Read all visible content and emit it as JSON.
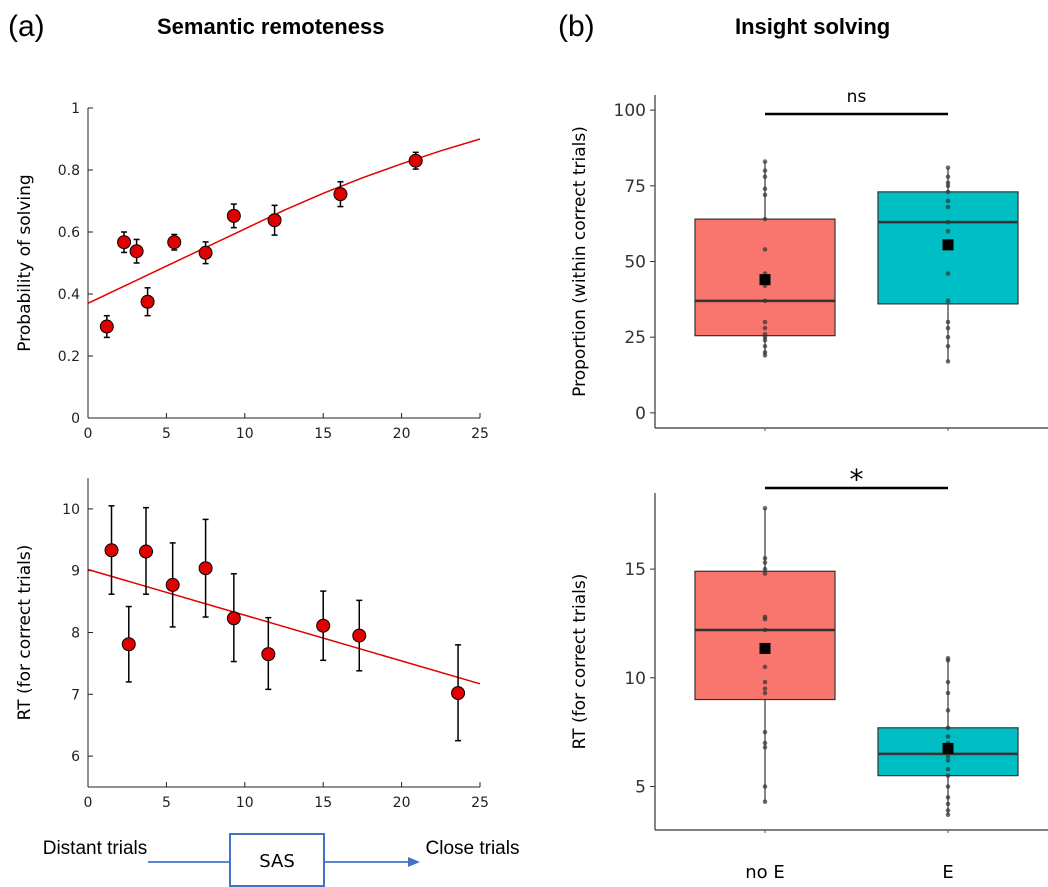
{
  "panels": {
    "a": {
      "label": "(a)",
      "title": "Semantic remoteness"
    },
    "b": {
      "label": "(b)",
      "title": "Insight solving"
    }
  },
  "flow": {
    "left_label": "Distant trials",
    "center_label": "SAS",
    "right_label": "Close trials",
    "color": "#4472c4"
  },
  "colors": {
    "points": "#e00000",
    "fit": "#e00000",
    "box_noE": "#f8766d",
    "box_E": "#00bfc4"
  },
  "chart_data": [
    {
      "id": "a-top",
      "type": "scatter",
      "title": "",
      "xlabel": "",
      "ylabel": "Probability of solving",
      "xlim": [
        0,
        25
      ],
      "ylim": [
        0,
        1
      ],
      "xticks": [
        0,
        5,
        10,
        15,
        20,
        25
      ],
      "yticks": [
        0,
        0.2,
        0.4,
        0.6,
        0.8,
        1
      ],
      "ytick_labels": [
        "0",
        "0.2",
        "0.4",
        "0.6",
        "0.8",
        "1"
      ],
      "points": [
        {
          "x": 1.2,
          "y": 0.295,
          "err": 0.035
        },
        {
          "x": 2.3,
          "y": 0.567,
          "err": 0.033
        },
        {
          "x": 3.1,
          "y": 0.538,
          "err": 0.038
        },
        {
          "x": 3.8,
          "y": 0.375,
          "err": 0.045
        },
        {
          "x": 5.5,
          "y": 0.567,
          "err": 0.025
        },
        {
          "x": 7.5,
          "y": 0.533,
          "err": 0.035
        },
        {
          "x": 9.3,
          "y": 0.652,
          "err": 0.038
        },
        {
          "x": 11.9,
          "y": 0.638,
          "err": 0.048
        },
        {
          "x": 16.1,
          "y": 0.722,
          "err": 0.04
        },
        {
          "x": 20.9,
          "y": 0.83,
          "err": 0.027
        }
      ],
      "fit": {
        "x": [
          0,
          2.5,
          5,
          7.5,
          10,
          12.5,
          15,
          17.5,
          20,
          22.5,
          25
        ],
        "y": [
          0.37,
          0.43,
          0.49,
          0.55,
          0.61,
          0.67,
          0.725,
          0.775,
          0.82,
          0.862,
          0.9
        ]
      },
      "grid": false
    },
    {
      "id": "a-bottom",
      "type": "scatter",
      "title": "",
      "xlabel": "",
      "ylabel": "RT (for correct trials)",
      "xlim": [
        0,
        25
      ],
      "ylim": [
        5.5,
        10.5
      ],
      "xticks": [
        0,
        5,
        10,
        15,
        20,
        25
      ],
      "yticks": [
        6,
        7,
        8,
        9,
        10
      ],
      "points": [
        {
          "x": 1.5,
          "y": 9.33,
          "low": 8.62,
          "high": 10.05
        },
        {
          "x": 2.6,
          "y": 7.81,
          "low": 7.2,
          "high": 8.42
        },
        {
          "x": 3.7,
          "y": 9.31,
          "low": 8.62,
          "high": 10.02
        },
        {
          "x": 5.4,
          "y": 8.77,
          "low": 8.09,
          "high": 9.45
        },
        {
          "x": 7.5,
          "y": 9.04,
          "low": 8.25,
          "high": 9.83
        },
        {
          "x": 9.3,
          "y": 8.23,
          "low": 7.53,
          "high": 8.95
        },
        {
          "x": 11.5,
          "y": 7.65,
          "low": 7.08,
          "high": 8.24
        },
        {
          "x": 15.0,
          "y": 8.11,
          "low": 7.55,
          "high": 8.67
        },
        {
          "x": 17.3,
          "y": 7.95,
          "low": 7.38,
          "high": 8.52
        },
        {
          "x": 23.6,
          "y": 7.02,
          "low": 6.25,
          "high": 7.8
        }
      ],
      "fit": {
        "x": [
          0,
          25
        ],
        "y": [
          9.02,
          7.17
        ]
      },
      "grid": false
    },
    {
      "id": "b-top",
      "type": "box",
      "title": "",
      "xlabel": "",
      "ylabel": "Proportion (within correct trials)",
      "ylim": [
        -5,
        105
      ],
      "yticks": [
        0,
        25,
        50,
        75,
        100
      ],
      "categories": [
        "no E",
        "E"
      ],
      "boxes": [
        {
          "name": "no E",
          "q1": 25.5,
          "median": 37,
          "q3": 64,
          "whisker_low": 19,
          "whisker_high": 83,
          "mean": 44,
          "points": [
            83,
            80,
            78,
            74,
            72,
            64,
            54,
            46,
            42,
            37,
            30,
            28,
            26,
            25,
            24,
            22,
            20,
            19
          ]
        },
        {
          "name": "E",
          "q1": 36,
          "median": 63,
          "q3": 73,
          "whisker_low": 17,
          "whisker_high": 81,
          "mean": 55.5,
          "points": [
            81,
            78,
            76,
            75,
            73,
            70,
            68,
            63,
            60,
            55,
            46,
            37,
            30,
            28,
            25,
            22,
            17
          ]
        }
      ],
      "significance": "ns"
    },
    {
      "id": "b-bottom",
      "type": "box",
      "title": "",
      "xlabel": "",
      "ylabel": "RT (for correct trials)",
      "ylim": [
        3,
        18.5
      ],
      "yticks": [
        5,
        10,
        15
      ],
      "categories": [
        "no E",
        "E"
      ],
      "boxes": [
        {
          "name": "no E",
          "q1": 9.0,
          "median": 12.2,
          "q3": 14.9,
          "whisker_low": 4.3,
          "whisker_high": 17.8,
          "mean": 11.35,
          "points": [
            17.8,
            15.5,
            15.3,
            15.0,
            14.8,
            12.8,
            12.7,
            12.2,
            11.5,
            10.5,
            9.8,
            9.5,
            9.3,
            7.5,
            7.0,
            6.8,
            5.0,
            4.3
          ]
        },
        {
          "name": "E",
          "q1": 5.5,
          "median": 6.5,
          "q3": 7.7,
          "whisker_low": 3.7,
          "whisker_high": 10.9,
          "mean": 6.75,
          "points": [
            10.9,
            10.8,
            9.8,
            9.3,
            8.5,
            7.7,
            7.3,
            7.0,
            6.9,
            6.6,
            6.4,
            6.2,
            5.8,
            5.5,
            5.0,
            4.5,
            4.2,
            3.9,
            3.7
          ]
        }
      ],
      "significance": "*"
    }
  ]
}
